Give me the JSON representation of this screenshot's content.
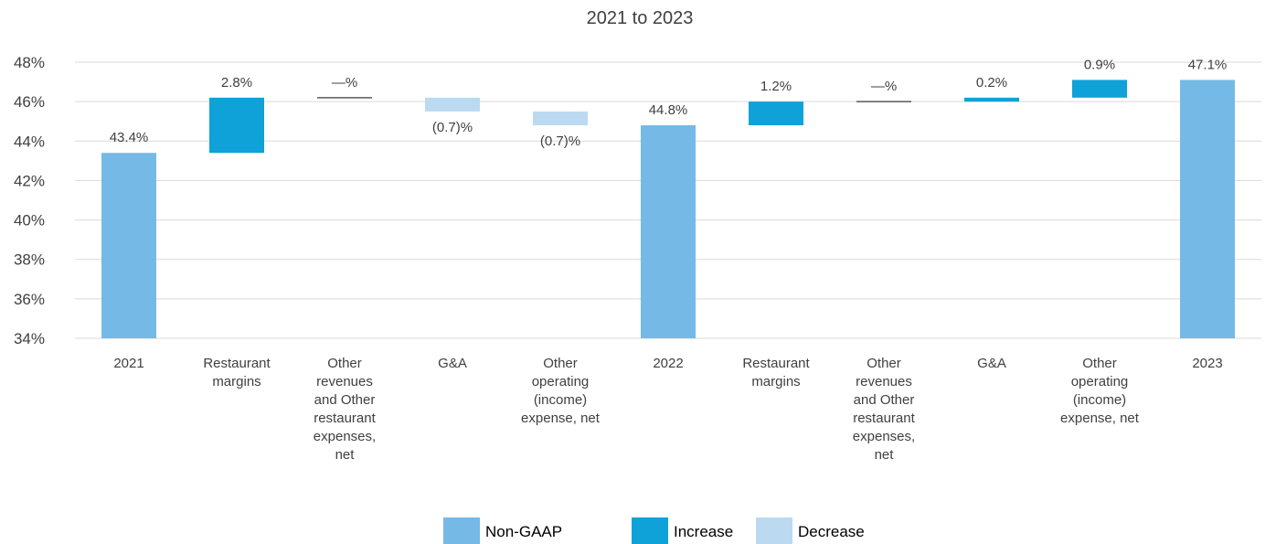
{
  "chart_data": {
    "type": "bar",
    "subtype": "waterfall",
    "title": "2021 to 2023",
    "xlabel": "",
    "ylabel": "",
    "ylim": [
      34,
      48
    ],
    "y_ticks": [
      34,
      36,
      38,
      40,
      42,
      44,
      46,
      48
    ],
    "y_tick_labels": [
      "34%",
      "36%",
      "38%",
      "40%",
      "42%",
      "44%",
      "46%",
      "48%"
    ],
    "grid": true,
    "legend_position": "bottom",
    "categories": [
      [
        "2021"
      ],
      [
        "Restaurant",
        "margins"
      ],
      [
        "Other",
        "revenues",
        "and Other",
        "restaurant",
        "expenses,",
        "net"
      ],
      [
        "G&A"
      ],
      [
        "Other",
        "operating",
        "(income)",
        "expense, net"
      ],
      [
        "2022"
      ],
      [
        "Restaurant",
        "margins"
      ],
      [
        "Other",
        "revenues",
        "and Other",
        "restaurant",
        "expenses,",
        "net"
      ],
      [
        "G&A"
      ],
      [
        "Other",
        "operating",
        "(income)",
        "expense, net"
      ],
      [
        "2023"
      ]
    ],
    "bars": [
      {
        "kind": "total",
        "start": 34,
        "end": 43.4,
        "label": "43.4%"
      },
      {
        "kind": "increase",
        "start": 43.4,
        "end": 46.2,
        "label": "2.8%"
      },
      {
        "kind": "flat",
        "start": 46.2,
        "end": 46.2,
        "label": "—%"
      },
      {
        "kind": "decrease",
        "start": 46.2,
        "end": 45.5,
        "label": "(0.7)%"
      },
      {
        "kind": "decrease",
        "start": 45.5,
        "end": 44.8,
        "label": "(0.7)%"
      },
      {
        "kind": "total",
        "start": 34,
        "end": 44.8,
        "label": "44.8%"
      },
      {
        "kind": "increase",
        "start": 44.8,
        "end": 46.0,
        "label": "1.2%"
      },
      {
        "kind": "flat",
        "start": 46.0,
        "end": 46.0,
        "label": "—%"
      },
      {
        "kind": "increase",
        "start": 46.0,
        "end": 46.2,
        "label": "0.2%"
      },
      {
        "kind": "increase",
        "start": 46.2,
        "end": 47.1,
        "label": "0.9%"
      },
      {
        "kind": "total",
        "start": 34,
        "end": 47.1,
        "label": "47.1%"
      }
    ],
    "legend": [
      {
        "kind": "total",
        "name": "Non-GAAP"
      },
      {
        "kind": "increase",
        "name": "Increase"
      },
      {
        "kind": "decrease",
        "name": "Decrease"
      }
    ],
    "colors": {
      "total": "#75BAE6",
      "increase": "#0EA2D8",
      "decrease": "#BBDAF2",
      "flat": "#595959",
      "grid": "#D9D9D9"
    }
  }
}
